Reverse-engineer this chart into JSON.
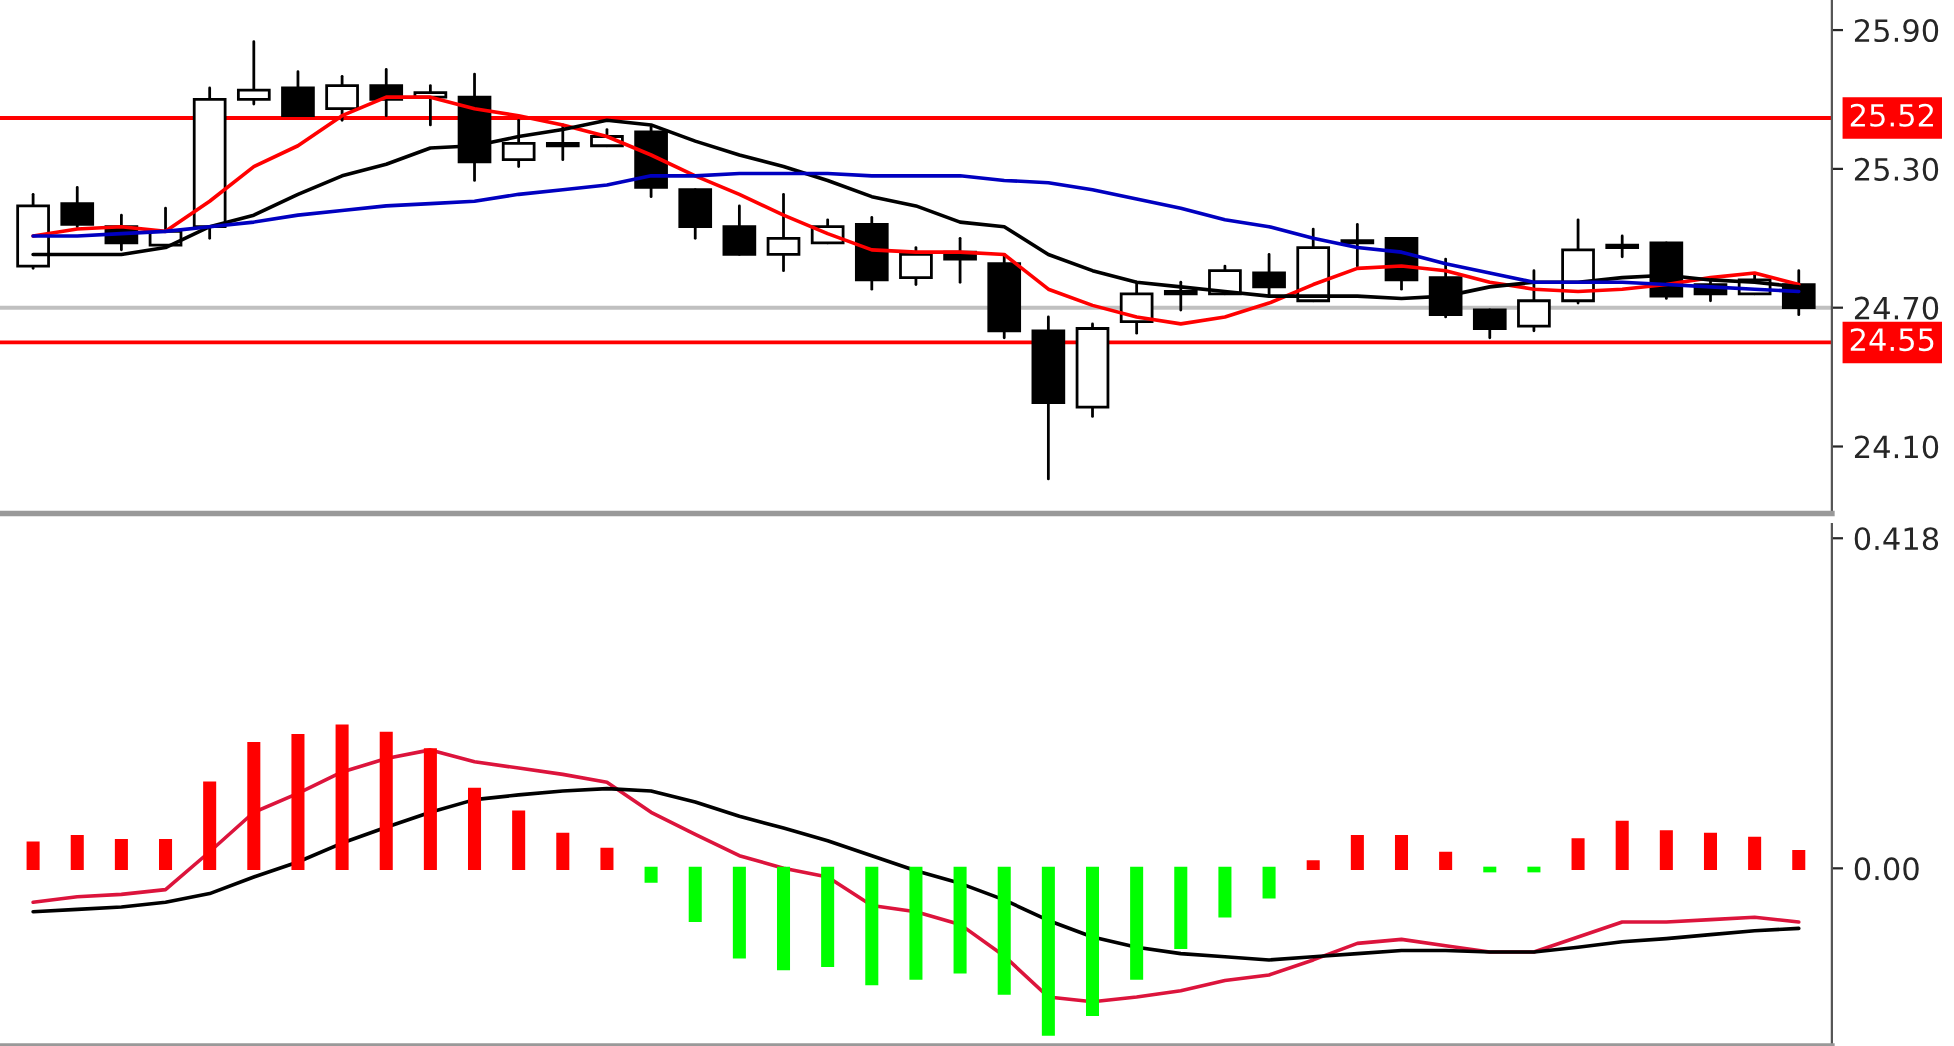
{
  "chart_data": [
    {
      "type": "candlestick",
      "categories": [
        null,
        null,
        null,
        null,
        null,
        null,
        null,
        null,
        null,
        null,
        null,
        null,
        null,
        null,
        null,
        null,
        null,
        null,
        null,
        null,
        null,
        null,
        null,
        null,
        null,
        null,
        null,
        null,
        null,
        null,
        null,
        null,
        null,
        null,
        null,
        null,
        null,
        null,
        null,
        null,
        null
      ],
      "ohlc": [
        [
          24.88,
          25.19,
          24.87,
          25.14
        ],
        [
          25.15,
          25.22,
          25.05,
          25.06
        ],
        [
          25.05,
          25.1,
          24.95,
          24.98
        ],
        [
          24.97,
          25.13,
          24.97,
          25.03
        ],
        [
          25.05,
          25.65,
          25.0,
          25.6
        ],
        [
          25.6,
          25.85,
          25.58,
          25.64
        ],
        [
          25.65,
          25.72,
          25.53,
          25.53
        ],
        [
          25.56,
          25.7,
          25.51,
          25.66
        ],
        [
          25.66,
          25.73,
          25.53,
          25.6
        ],
        [
          25.61,
          25.66,
          25.49,
          25.63
        ],
        [
          25.61,
          25.71,
          25.25,
          25.33
        ],
        [
          25.34,
          25.51,
          25.31,
          25.41
        ],
        [
          25.4,
          25.49,
          25.34,
          25.41
        ],
        [
          25.4,
          25.47,
          25.4,
          25.44
        ],
        [
          25.46,
          25.48,
          25.18,
          25.22
        ],
        [
          25.21,
          25.21,
          25.0,
          25.05
        ],
        [
          25.05,
          25.14,
          24.93,
          24.93
        ],
        [
          24.93,
          25.19,
          24.86,
          25.0
        ],
        [
          24.98,
          25.08,
          24.98,
          25.05
        ],
        [
          25.06,
          25.09,
          24.78,
          24.82
        ],
        [
          24.83,
          24.96,
          24.8,
          24.93
        ],
        [
          24.94,
          25.0,
          24.81,
          24.91
        ],
        [
          24.89,
          24.93,
          24.57,
          24.6
        ],
        [
          24.6,
          24.66,
          23.96,
          24.29
        ],
        [
          24.27,
          24.63,
          24.23,
          24.61
        ],
        [
          24.64,
          24.81,
          24.59,
          24.76
        ],
        [
          24.76,
          24.81,
          24.69,
          24.77
        ],
        [
          24.76,
          24.88,
          24.76,
          24.86
        ],
        [
          24.85,
          24.93,
          24.75,
          24.79
        ],
        [
          24.73,
          25.04,
          24.73,
          24.96
        ],
        [
          24.98,
          25.06,
          24.88,
          24.99
        ],
        [
          25.0,
          25.0,
          24.78,
          24.82
        ],
        [
          24.83,
          24.91,
          24.66,
          24.67
        ],
        [
          24.69,
          24.69,
          24.57,
          24.61
        ],
        [
          24.62,
          24.86,
          24.6,
          24.73
        ],
        [
          24.73,
          25.08,
          24.72,
          24.95
        ],
        [
          24.96,
          25.01,
          24.92,
          24.97
        ],
        [
          24.98,
          24.98,
          24.74,
          24.75
        ],
        [
          24.8,
          24.83,
          24.73,
          24.76
        ],
        [
          24.76,
          24.84,
          24.76,
          24.82
        ],
        [
          24.8,
          24.86,
          24.67,
          24.7
        ]
      ],
      "series": [
        {
          "type": "line",
          "color": "#ff0000",
          "values": [
            25.01,
            25.04,
            25.05,
            25.03,
            25.16,
            25.31,
            25.4,
            25.53,
            25.61,
            25.61,
            25.56,
            25.53,
            25.49,
            25.44,
            25.36,
            25.27,
            25.19,
            25.1,
            25.02,
            24.95,
            24.94,
            24.94,
            24.93,
            24.78,
            24.71,
            24.66,
            24.63,
            24.66,
            24.72,
            24.8,
            24.87,
            24.88,
            24.86,
            24.81,
            24.78,
            24.77,
            24.78,
            24.8,
            24.83,
            24.85,
            24.8
          ]
        },
        {
          "type": "line",
          "color": "#000000",
          "values": [
            24.93,
            24.93,
            24.93,
            24.96,
            25.05,
            25.1,
            25.19,
            25.27,
            25.32,
            25.39,
            25.4,
            25.44,
            25.47,
            25.51,
            25.49,
            25.42,
            25.36,
            25.31,
            25.25,
            25.18,
            25.14,
            25.07,
            25.05,
            24.93,
            24.86,
            24.81,
            24.79,
            24.77,
            24.75,
            24.75,
            24.75,
            24.74,
            24.75,
            24.79,
            24.81,
            24.81,
            24.83,
            24.84,
            24.82,
            24.81,
            24.79
          ]
        },
        {
          "type": "line",
          "color": "#0000c0",
          "values": [
            25.01,
            25.01,
            25.02,
            25.03,
            25.05,
            25.07,
            25.1,
            25.12,
            25.14,
            25.15,
            25.16,
            25.19,
            25.21,
            25.23,
            25.27,
            25.27,
            25.28,
            25.28,
            25.28,
            25.27,
            25.27,
            25.27,
            25.25,
            25.24,
            25.21,
            25.17,
            25.13,
            25.08,
            25.05,
            25.0,
            24.96,
            24.94,
            24.89,
            24.85,
            24.81,
            24.81,
            24.81,
            24.8,
            24.79,
            24.78,
            24.77
          ]
        }
      ],
      "ylim": [
        23.81,
        26.03
      ],
      "yticks": [
        {
          "value": 25.9,
          "label": "25.90"
        },
        {
          "value": 25.3,
          "label": "25.30"
        },
        {
          "value": 24.7,
          "label": "24.70"
        },
        {
          "value": 24.1,
          "label": "24.10"
        }
      ],
      "ref_lines": [
        {
          "axis": "y",
          "value": 25.52,
          "label": "25.52",
          "color": "#ff0000"
        },
        {
          "axis": "y",
          "value": 24.55,
          "label": "24.55",
          "color": "#ff0000"
        },
        {
          "axis": "y",
          "value": 24.7,
          "color": "#c0c0c0"
        }
      ],
      "tick_labels": "y",
      "grid": false,
      "legend": false
    },
    {
      "type": "bar",
      "categories": [
        null,
        null,
        null,
        null,
        null,
        null,
        null,
        null,
        null,
        null,
        null,
        null,
        null,
        null,
        null,
        null,
        null,
        null,
        null,
        null,
        null,
        null,
        null,
        null,
        null,
        null,
        null,
        null,
        null,
        null,
        null,
        null,
        null,
        null,
        null,
        null,
        null,
        null,
        null,
        null,
        null
      ],
      "series": [
        {
          "type": "bar",
          "values": [
            0.032,
            0.04,
            0.035,
            0.035,
            0.108,
            0.158,
            0.168,
            0.18,
            0.171,
            0.15,
            0.1,
            0.071,
            0.043,
            0.024,
            -0.016,
            -0.066,
            -0.112,
            -0.127,
            -0.123,
            -0.146,
            -0.139,
            -0.131,
            -0.158,
            -0.21,
            -0.185,
            -0.139,
            -0.1,
            -0.06,
            -0.036,
            0.008,
            0.04,
            0.04,
            0.019,
            -0.003,
            -0.003,
            0.036,
            0.058,
            0.046,
            0.043,
            0.038,
            0.021
          ],
          "colors": [
            "#ff0000",
            "#ff0000",
            "#ff0000",
            "#ff0000",
            "#ff0000",
            "#ff0000",
            "#ff0000",
            "#ff0000",
            "#ff0000",
            "#ff0000",
            "#ff0000",
            "#ff0000",
            "#ff0000",
            "#ff0000",
            "#00ff00",
            "#00ff00",
            "#00ff00",
            "#00ff00",
            "#00ff00",
            "#00ff00",
            "#00ff00",
            "#00ff00",
            "#00ff00",
            "#00ff00",
            "#00ff00",
            "#00ff00",
            "#00ff00",
            "#00ff00",
            "#00ff00",
            "#ff0000",
            "#ff0000",
            "#ff0000",
            "#ff0000",
            "#00ff00",
            "#00ff00",
            "#ff0000",
            "#ff0000",
            "#ff0000",
            "#ff0000",
            "#ff0000",
            "#ff0000"
          ]
        },
        {
          "type": "line",
          "color": "#dc143c",
          "values": [
            -0.043,
            -0.036,
            -0.033,
            -0.027,
            0.021,
            0.071,
            0.095,
            0.122,
            0.139,
            0.15,
            0.135,
            0.127,
            0.119,
            0.109,
            0.071,
            0.043,
            0.016,
            0.0,
            -0.011,
            -0.047,
            -0.055,
            -0.071,
            -0.111,
            -0.163,
            -0.169,
            -0.163,
            -0.155,
            -0.142,
            -0.135,
            -0.116,
            -0.095,
            -0.09,
            -0.098,
            -0.106,
            -0.106,
            -0.087,
            -0.068,
            -0.068,
            -0.065,
            -0.062,
            -0.068
          ]
        },
        {
          "type": "line",
          "color": "#000000",
          "values": [
            -0.055,
            -0.052,
            -0.049,
            -0.043,
            -0.032,
            -0.011,
            0.008,
            0.032,
            0.052,
            0.071,
            0.087,
            0.093,
            0.098,
            0.101,
            0.098,
            0.084,
            0.066,
            0.051,
            0.035,
            0.016,
            -0.003,
            -0.019,
            -0.04,
            -0.066,
            -0.087,
            -0.1,
            -0.108,
            -0.112,
            -0.116,
            -0.112,
            -0.108,
            -0.104,
            -0.104,
            -0.106,
            -0.106,
            -0.1,
            -0.093,
            -0.089,
            -0.084,
            -0.079,
            -0.076
          ]
        }
      ],
      "ylim": [
        -0.225,
        0.436
      ],
      "yticks": [
        {
          "value": 0.418,
          "label": "0.418"
        },
        {
          "value": 0.0,
          "label": "0.00"
        }
      ],
      "tick_labels": "y",
      "grid": false,
      "legend": false
    }
  ]
}
